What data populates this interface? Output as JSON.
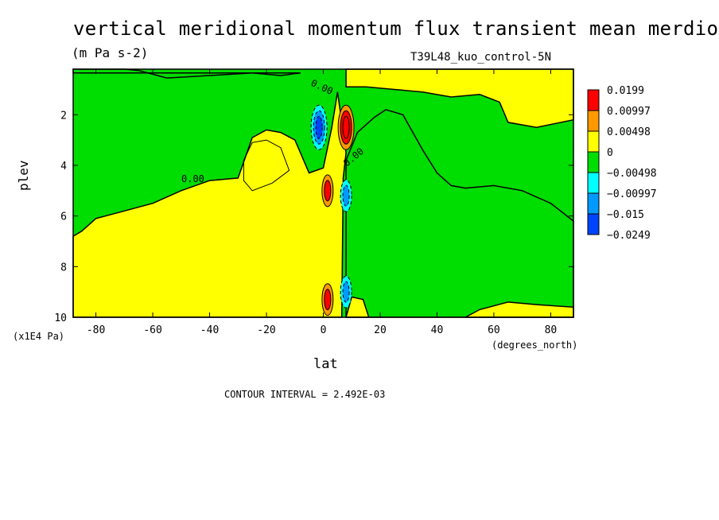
{
  "chart_data": {
    "type": "heatmap",
    "title": "vertical meridional momentum flux transient mean merdional",
    "units": "(m Pa s-2)",
    "run_label": "T39L48_kuo_control-5N",
    "xlabel": "lat",
    "ylabel": "plev",
    "y_unit": "(x1E4 Pa)",
    "x_unit": "(degrees_north)",
    "xlim": [
      -88,
      88
    ],
    "ylim": [
      10,
      0.2
    ],
    "x_ticks": [
      -80,
      -60,
      -40,
      -20,
      0,
      20,
      40,
      60,
      80
    ],
    "x_tick_labels": [
      "-80",
      "-60",
      "-40",
      "-20",
      "0",
      "20",
      "40",
      "60",
      "80"
    ],
    "y_ticks": [
      2,
      4,
      6,
      8,
      10
    ],
    "y_tick_labels": [
      "2",
      "4",
      "6",
      "8",
      "10"
    ],
    "contour_interval": "CONTOUR INTERVAL = 2.492E-03",
    "contour_labels": [
      "0.00",
      "0.00",
      "0.00"
    ],
    "legend": [
      {
        "label": "0.0199",
        "color": "#ff0000"
      },
      {
        "label": "0.00997",
        "color": "#ff9900"
      },
      {
        "label": "0.00498",
        "color": "#ffff00"
      },
      {
        "label": "0",
        "color": "#00dd00"
      },
      {
        "label": "−0.00498",
        "color": "#00ffff"
      },
      {
        "label": "−0.00997",
        "color": "#0099ff"
      },
      {
        "label": "−0.015",
        "color": "#0044ff"
      },
      {
        "label": "−0.0249",
        "color": ""
      }
    ],
    "regions": [
      {
        "name": "positive-band-southern",
        "sign": "positive",
        "polygon": [
          [
            -88,
            6.8
          ],
          [
            -85,
            6.6
          ],
          [
            -80,
            6.1
          ],
          [
            -70,
            5.8
          ],
          [
            -60,
            5.5
          ],
          [
            -50,
            5.0
          ],
          [
            -40,
            4.6
          ],
          [
            -30,
            4.5
          ],
          [
            -25,
            2.9
          ],
          [
            -20,
            2.6
          ],
          [
            -15,
            2.7
          ],
          [
            -10,
            3.0
          ],
          [
            -5,
            4.3
          ],
          [
            0,
            4.1
          ],
          [
            3,
            2.5
          ],
          [
            5,
            1.1
          ],
          [
            8,
            3.5
          ],
          [
            7,
            4.5
          ],
          [
            6.5,
            10
          ],
          [
            -88,
            10
          ]
        ]
      },
      {
        "name": "negative-top-left",
        "sign": "negative",
        "polygon": [
          [
            -88,
            0.2
          ],
          [
            -70,
            0.2
          ],
          [
            -65,
            0.25
          ],
          [
            -55,
            0.55
          ],
          [
            -40,
            0.45
          ],
          [
            -25,
            0.35
          ],
          [
            -15,
            0.45
          ],
          [
            -8,
            0.35
          ],
          [
            -88,
            0.35
          ]
        ]
      },
      {
        "name": "positive-top-right",
        "sign": "positive",
        "polygon": [
          [
            8,
            0.2
          ],
          [
            88,
            0.2
          ],
          [
            88,
            2.2
          ],
          [
            75,
            2.5
          ],
          [
            65,
            2.3
          ],
          [
            62,
            1.5
          ],
          [
            55,
            1.2
          ],
          [
            45,
            1.3
          ],
          [
            35,
            1.1
          ],
          [
            25,
            1.0
          ],
          [
            15,
            0.9
          ],
          [
            8,
            0.9
          ]
        ]
      },
      {
        "name": "negative-plateau-right",
        "sign": "negative",
        "polygon": [
          [
            8,
            3.8
          ],
          [
            12,
            2.7
          ],
          [
            18,
            2.1
          ],
          [
            22,
            1.8
          ],
          [
            28,
            2.0
          ],
          [
            35,
            3.4
          ],
          [
            40,
            4.3
          ],
          [
            45,
            4.8
          ],
          [
            50,
            4.9
          ],
          [
            60,
            4.8
          ],
          [
            70,
            5.0
          ],
          [
            80,
            5.5
          ],
          [
            88,
            6.2
          ],
          [
            88,
            10
          ],
          [
            8,
            10
          ]
        ]
      },
      {
        "name": "positive-bottom-right",
        "sign": "positive",
        "polygon": [
          [
            50,
            10
          ],
          [
            55,
            9.7
          ],
          [
            65,
            9.4
          ],
          [
            75,
            9.5
          ],
          [
            88,
            9.6
          ],
          [
            88,
            10
          ]
        ]
      },
      {
        "name": "positive-bottom-near-eq",
        "sign": "positive",
        "polygon": [
          [
            8,
            10
          ],
          [
            10,
            9.2
          ],
          [
            14,
            9.3
          ],
          [
            16,
            10
          ]
        ]
      }
    ],
    "extrema": [
      {
        "lat": -1.5,
        "plev": 2.5,
        "sign": "negative",
        "level": -0.0249
      },
      {
        "lat": 8,
        "plev": 2.5,
        "sign": "positive",
        "level": 0.0199
      },
      {
        "lat": 1.5,
        "plev": 5.0,
        "sign": "positive",
        "level": 0.00997
      },
      {
        "lat": 8,
        "plev": 5.2,
        "sign": "negative",
        "level": -0.00997
      },
      {
        "lat": 1.5,
        "plev": 9.3,
        "sign": "positive",
        "level": 0.00997
      },
      {
        "lat": 8,
        "plev": 9.0,
        "sign": "negative",
        "level": -0.00997
      }
    ]
  }
}
